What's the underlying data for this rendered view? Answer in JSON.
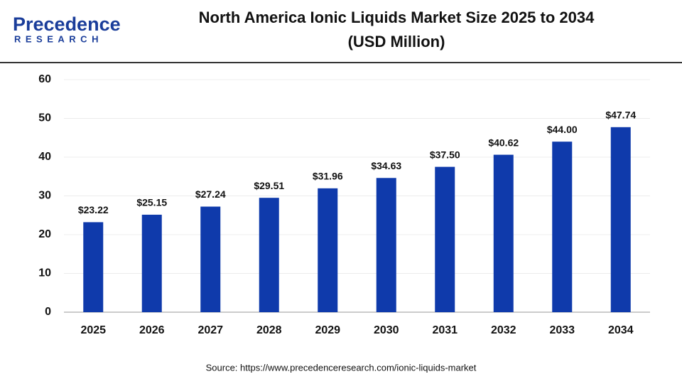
{
  "brand": {
    "name": "Precedence",
    "tagline": "RESEARCH"
  },
  "chart_data": {
    "type": "bar",
    "title": "North America Ionic Liquids Market Size 2025 to 2034",
    "subtitle": "(USD Million)",
    "categories": [
      "2025",
      "2026",
      "2027",
      "2028",
      "2029",
      "2030",
      "2031",
      "2032",
      "2033",
      "2034"
    ],
    "values": [
      23.22,
      25.15,
      27.24,
      29.51,
      31.96,
      34.63,
      37.5,
      40.62,
      44.0,
      47.74
    ],
    "value_labels": [
      "$23.22",
      "$25.15",
      "$27.24",
      "$29.51",
      "$31.96",
      "$34.63",
      "$37.50",
      "$40.62",
      "$44.00",
      "$47.74"
    ],
    "color": "#0f3aab",
    "ylim": [
      0,
      60
    ],
    "yticks": [
      0,
      10,
      20,
      30,
      40,
      50,
      60
    ],
    "grid": true,
    "source": "Source: https://www.precedenceresearch.com/ionic-liquids-market"
  }
}
